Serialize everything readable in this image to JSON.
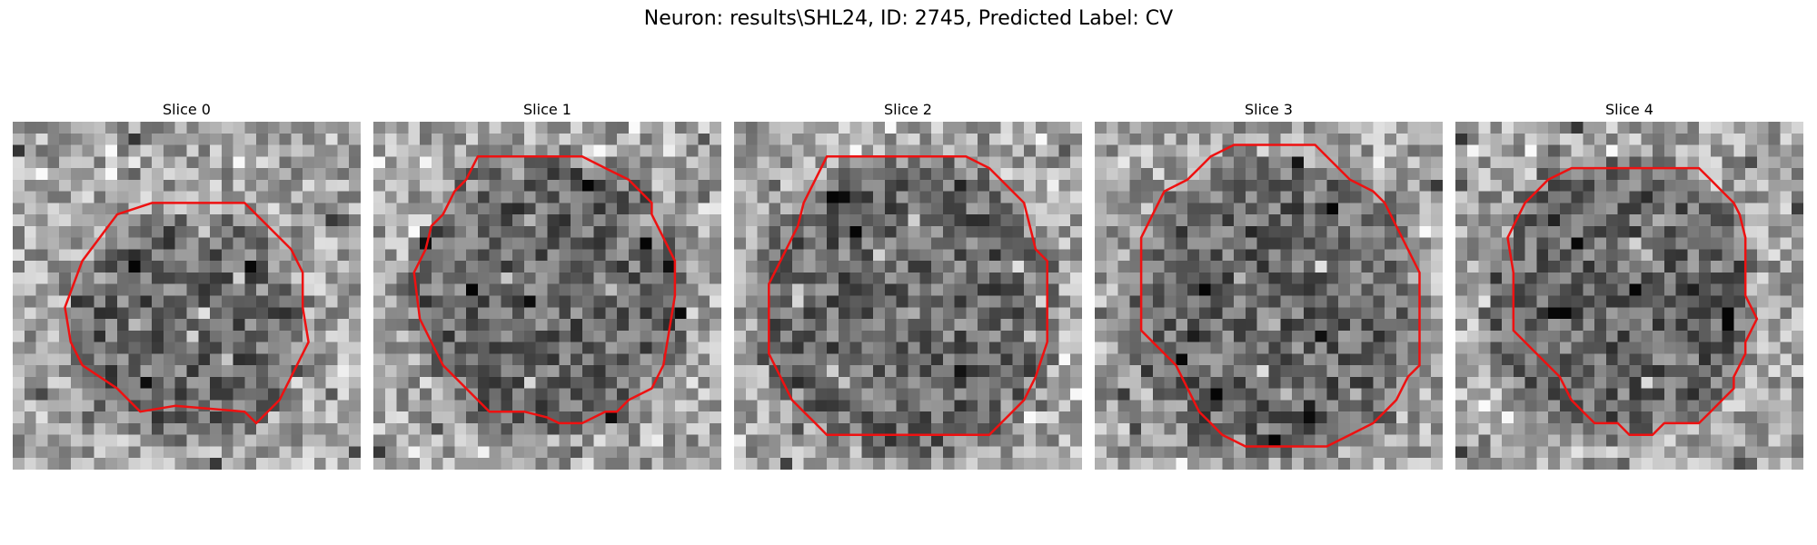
{
  "figure": {
    "title": "Neuron: results\\SHL24, ID: 2745, Predicted Label: CV"
  },
  "grid_size": 30,
  "contour_color": "#ee1111",
  "slices": [
    {
      "label": "Slice 0",
      "seed": 11,
      "dark_center": [
        15,
        18
      ],
      "dark_radius": 9,
      "contour": [
        [
          12,
          7
        ],
        [
          20,
          7
        ],
        [
          24,
          11
        ],
        [
          25,
          13
        ],
        [
          25,
          16
        ],
        [
          25.5,
          19
        ],
        [
          24,
          22
        ],
        [
          23,
          24
        ],
        [
          21,
          26
        ],
        [
          20,
          25
        ],
        [
          14,
          24.5
        ],
        [
          11,
          25
        ],
        [
          9,
          23
        ],
        [
          6,
          21
        ],
        [
          5,
          19
        ],
        [
          4.5,
          16
        ],
        [
          6,
          12
        ],
        [
          9,
          8
        ]
      ]
    },
    {
      "label": "Slice 1",
      "seed": 23,
      "dark_center": [
        15,
        15
      ],
      "dark_radius": 11,
      "contour": [
        [
          9,
          3
        ],
        [
          18,
          3
        ],
        [
          20,
          4
        ],
        [
          22,
          5
        ],
        [
          24,
          7
        ],
        [
          24,
          8
        ],
        [
          25,
          10
        ],
        [
          26,
          12
        ],
        [
          26,
          15
        ],
        [
          25.5,
          18
        ],
        [
          25,
          21
        ],
        [
          24,
          23
        ],
        [
          22,
          24
        ],
        [
          21,
          25
        ],
        [
          20,
          25
        ],
        [
          18,
          26
        ],
        [
          16,
          26
        ],
        [
          15,
          25.5
        ],
        [
          13,
          25
        ],
        [
          10,
          25
        ],
        [
          8,
          23
        ],
        [
          6,
          21
        ],
        [
          5,
          19
        ],
        [
          4,
          17
        ],
        [
          3.5,
          13
        ],
        [
          4.5,
          11
        ],
        [
          5,
          9
        ],
        [
          6,
          8
        ],
        [
          7,
          6
        ],
        [
          8,
          5
        ]
      ]
    },
    {
      "label": "Slice 2",
      "seed": 37,
      "dark_center": [
        15,
        16
      ],
      "dark_radius": 12,
      "contour": [
        [
          8,
          3
        ],
        [
          20,
          3
        ],
        [
          22,
          4
        ],
        [
          23,
          5
        ],
        [
          24,
          6
        ],
        [
          25,
          7
        ],
        [
          25.5,
          9
        ],
        [
          26,
          11
        ],
        [
          27,
          12
        ],
        [
          27,
          15
        ],
        [
          27,
          19
        ],
        [
          26,
          22
        ],
        [
          25,
          24
        ],
        [
          24,
          25
        ],
        [
          22,
          27
        ],
        [
          8,
          27
        ],
        [
          7,
          26
        ],
        [
          6,
          25
        ],
        [
          5,
          24
        ],
        [
          4,
          22
        ],
        [
          3,
          20
        ],
        [
          3,
          17
        ],
        [
          3,
          14
        ],
        [
          4,
          12
        ],
        [
          5,
          10
        ],
        [
          5.5,
          9
        ],
        [
          6,
          7
        ],
        [
          7,
          5
        ]
      ]
    },
    {
      "label": "Slice 3",
      "seed": 53,
      "dark_center": [
        16,
        16
      ],
      "dark_radius": 12,
      "contour": [
        [
          12,
          2
        ],
        [
          19,
          2
        ],
        [
          20,
          3
        ],
        [
          22,
          5
        ],
        [
          24,
          6
        ],
        [
          25,
          7
        ],
        [
          26,
          9
        ],
        [
          27,
          11
        ],
        [
          28,
          13
        ],
        [
          28,
          16
        ],
        [
          28,
          19
        ],
        [
          28,
          21
        ],
        [
          27,
          22
        ],
        [
          26,
          24
        ],
        [
          25,
          25
        ],
        [
          24,
          26
        ],
        [
          22,
          27
        ],
        [
          20,
          28
        ],
        [
          13,
          28
        ],
        [
          11,
          27
        ],
        [
          10,
          26
        ],
        [
          9,
          25
        ],
        [
          8,
          23
        ],
        [
          7,
          21
        ],
        [
          4,
          18
        ],
        [
          4,
          13
        ],
        [
          4,
          10
        ],
        [
          5,
          8
        ],
        [
          6,
          6
        ],
        [
          8,
          5
        ],
        [
          9,
          4
        ],
        [
          10,
          3
        ]
      ]
    },
    {
      "label": "Slice 4",
      "seed": 71,
      "dark_center": [
        14,
        15
      ],
      "dark_radius": 11,
      "contour": [
        [
          12,
          4
        ],
        [
          21,
          4
        ],
        [
          22,
          5
        ],
        [
          23,
          6
        ],
        [
          24,
          7
        ],
        [
          24.5,
          8
        ],
        [
          25,
          10
        ],
        [
          25,
          12
        ],
        [
          25,
          15
        ],
        [
          26,
          17
        ],
        [
          25,
          19
        ],
        [
          25,
          20
        ],
        [
          24,
          22
        ],
        [
          24,
          23
        ],
        [
          23,
          24
        ],
        [
          22,
          25
        ],
        [
          21,
          26
        ],
        [
          20,
          26
        ],
        [
          18,
          26
        ],
        [
          17,
          27
        ],
        [
          15,
          27
        ],
        [
          14,
          26
        ],
        [
          12,
          26
        ],
        [
          11,
          25
        ],
        [
          10,
          24
        ],
        [
          9,
          22
        ],
        [
          8,
          21
        ],
        [
          5,
          18
        ],
        [
          5,
          13
        ],
        [
          4.5,
          10
        ],
        [
          5,
          9
        ],
        [
          6,
          7
        ],
        [
          7,
          6
        ],
        [
          8,
          5
        ],
        [
          10,
          4
        ]
      ]
    }
  ]
}
